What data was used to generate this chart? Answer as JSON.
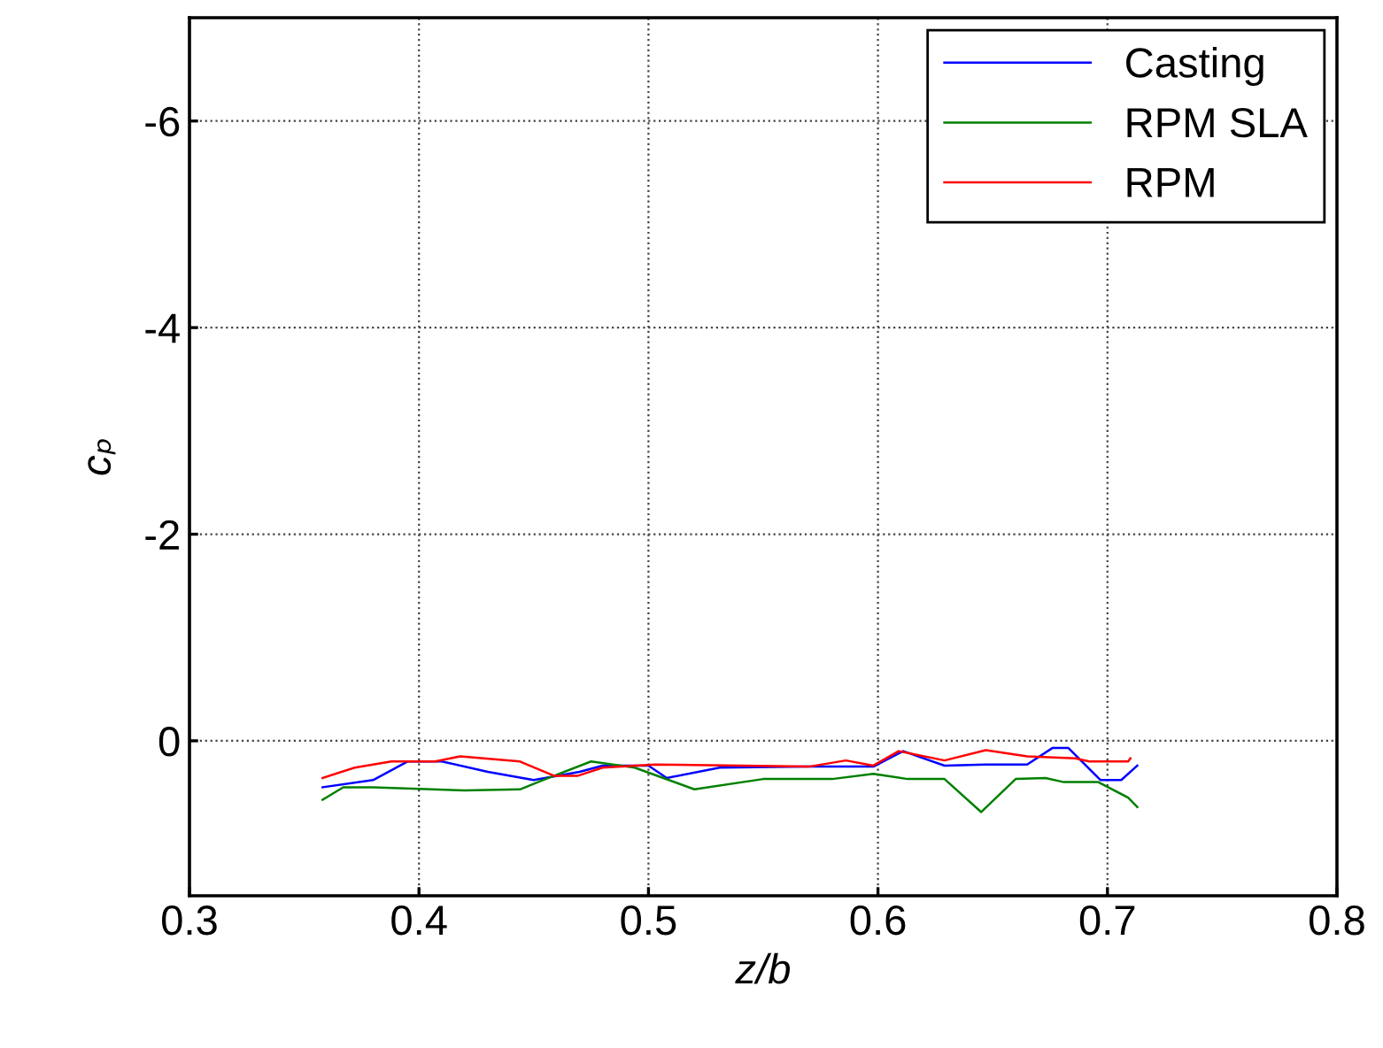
{
  "chart_data": {
    "type": "line",
    "xlabel": "z/b",
    "ylabel": "cₚ",
    "xlim": [
      0.3,
      0.8
    ],
    "xticks": [
      0.3,
      0.4,
      0.5,
      0.6,
      0.7,
      0.8
    ],
    "ylim": [
      1.5,
      -7
    ],
    "yticks": [
      -6,
      -4,
      -2,
      0
    ],
    "grid": true,
    "legend": "top right",
    "series": [
      {
        "name": "Casting",
        "color": "#0000ff",
        "x": [
          0.358,
          0.38,
          0.395,
          0.41,
          0.43,
          0.45,
          0.47,
          0.48,
          0.5,
          0.508,
          0.531,
          0.57,
          0.598,
          0.611,
          0.629,
          0.647,
          0.665,
          0.676,
          0.683,
          0.697,
          0.706,
          0.713
        ],
        "values": [
          0.45,
          0.38,
          0.2,
          0.2,
          0.3,
          0.38,
          0.3,
          0.24,
          0.24,
          0.36,
          0.26,
          0.25,
          0.25,
          0.1,
          0.24,
          0.23,
          0.23,
          0.07,
          0.07,
          0.38,
          0.38,
          0.24
        ]
      },
      {
        "name": "RPM SLA",
        "color": "#008000",
        "x": [
          0.358,
          0.367,
          0.38,
          0.42,
          0.444,
          0.454,
          0.475,
          0.494,
          0.52,
          0.55,
          0.58,
          0.598,
          0.613,
          0.629,
          0.645,
          0.66,
          0.673,
          0.681,
          0.696,
          0.709,
          0.713
        ],
        "values": [
          0.57,
          0.45,
          0.45,
          0.48,
          0.47,
          0.38,
          0.2,
          0.26,
          0.47,
          0.37,
          0.37,
          0.32,
          0.37,
          0.37,
          0.69,
          0.37,
          0.36,
          0.4,
          0.4,
          0.55,
          0.64
        ]
      },
      {
        "name": "RPM",
        "color": "#ff0000",
        "x": [
          0.358,
          0.372,
          0.388,
          0.407,
          0.418,
          0.444,
          0.459,
          0.469,
          0.48,
          0.503,
          0.57,
          0.586,
          0.598,
          0.609,
          0.629,
          0.647,
          0.665,
          0.686,
          0.692,
          0.709,
          0.71
        ],
        "values": [
          0.36,
          0.26,
          0.2,
          0.2,
          0.15,
          0.2,
          0.34,
          0.34,
          0.26,
          0.23,
          0.25,
          0.19,
          0.24,
          0.1,
          0.19,
          0.09,
          0.15,
          0.17,
          0.2,
          0.2,
          0.17
        ]
      }
    ]
  }
}
